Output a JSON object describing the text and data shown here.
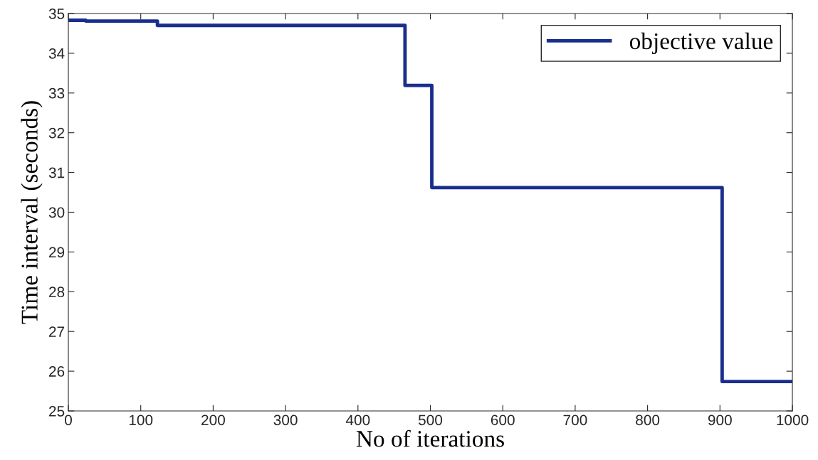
{
  "chart_data": {
    "type": "step",
    "xlabel": "No of iterations",
    "ylabel": "Time interval (seconds)",
    "x": [
      0,
      24,
      123,
      465,
      502,
      903,
      1000
    ],
    "series": [
      {
        "name": "objective value",
        "color": "#1a2e8c",
        "values": [
          34.83,
          34.81,
          34.7,
          33.19,
          30.62,
          25.74,
          25.74
        ]
      }
    ],
    "xlim": [
      0,
      1000
    ],
    "xticks": [
      0,
      100,
      200,
      300,
      400,
      500,
      600,
      700,
      800,
      900,
      1000
    ],
    "ylim": [
      25,
      35
    ],
    "yticks": [
      25,
      26,
      27,
      28,
      29,
      30,
      31,
      32,
      33,
      34,
      35
    ],
    "grid": false,
    "legend": "top right",
    "line_style": "solid",
    "marker": "none"
  }
}
